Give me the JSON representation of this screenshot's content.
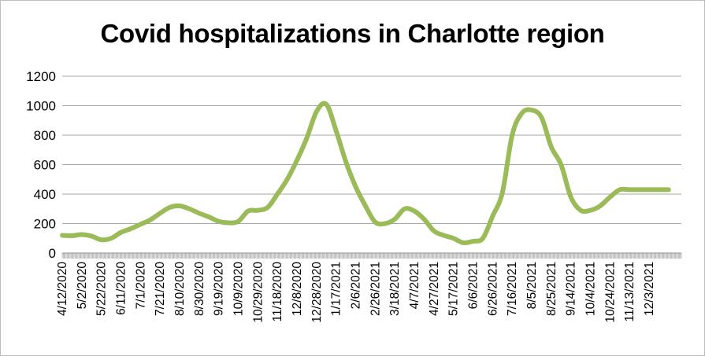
{
  "chart_data": {
    "type": "line",
    "title": "Covid hospitalizations in Charlotte region",
    "xlabel": "",
    "ylabel": "",
    "ylim": [
      0,
      1200
    ],
    "y_ticks": [
      "0",
      "200",
      "400",
      "600",
      "800",
      "1000",
      "1200"
    ],
    "x_tick_labels": [
      "4/12/2020",
      "5/2/2020",
      "5/22/2020",
      "6/11/2020",
      "7/1/2020",
      "7/21/2020",
      "8/10/2020",
      "8/30/2020",
      "9/19/2020",
      "10/9/2020",
      "10/29/2020",
      "11/18/2020",
      "12/8/2020",
      "12/28/2020",
      "1/17/2021",
      "2/6/2021",
      "2/26/2021",
      "3/18/2021",
      "4/7/2021",
      "4/27/2021",
      "5/17/2021",
      "6/6/2021",
      "6/26/2021",
      "7/16/2021",
      "8/5/2021",
      "8/25/2021",
      "9/14/2021",
      "10/4/2021",
      "10/24/2021",
      "11/13/2021",
      "12/3/2021"
    ],
    "grid": true,
    "legend": "none",
    "line_color": "#9bbb59",
    "series": [
      {
        "x": [
          "4/12/2020",
          "4/22/2020",
          "5/2/2020",
          "5/12/2020",
          "5/22/2020",
          "6/1/2020",
          "6/11/2020",
          "6/21/2020",
          "7/1/2020",
          "7/11/2020",
          "7/21/2020",
          "7/31/2020",
          "8/10/2020",
          "8/20/2020",
          "8/30/2020",
          "9/9/2020",
          "9/19/2020",
          "9/29/2020",
          "10/9/2020",
          "10/19/2020",
          "10/29/2020",
          "11/8/2020",
          "11/18/2020",
          "11/28/2020",
          "12/8/2020",
          "12/18/2020",
          "12/28/2020",
          "1/7/2021",
          "1/17/2021",
          "1/27/2021",
          "2/6/2021",
          "2/16/2021",
          "2/26/2021",
          "3/8/2021",
          "3/18/2021",
          "3/28/2021",
          "4/7/2021",
          "4/17/2021",
          "4/27/2021",
          "5/7/2021",
          "5/17/2021",
          "5/27/2021",
          "6/6/2021",
          "6/16/2021",
          "6/26/2021",
          "7/6/2021",
          "7/16/2021",
          "7/26/2021",
          "8/5/2021",
          "8/15/2021",
          "8/25/2021",
          "9/4/2021",
          "9/14/2021",
          "9/24/2021",
          "10/4/2021",
          "10/14/2021",
          "10/24/2021",
          "11/3/2021",
          "11/13/2021",
          "11/23/2021",
          "12/3/2021",
          "12/13/2021",
          "12/23/2021"
        ],
        "values": [
          120,
          118,
          125,
          115,
          90,
          100,
          140,
          165,
          195,
          225,
          270,
          310,
          320,
          300,
          270,
          245,
          215,
          205,
          215,
          285,
          290,
          310,
          400,
          500,
          630,
          780,
          960,
          1010,
          830,
          620,
          450,
          320,
          210,
          200,
          230,
          300,
          285,
          230,
          150,
          120,
          100,
          70,
          80,
          100,
          250,
          410,
          800,
          950,
          970,
          920,
          720,
          600,
          380,
          290,
          290,
          320,
          380,
          430,
          430,
          430,
          430,
          430,
          430
        ]
      }
    ]
  }
}
